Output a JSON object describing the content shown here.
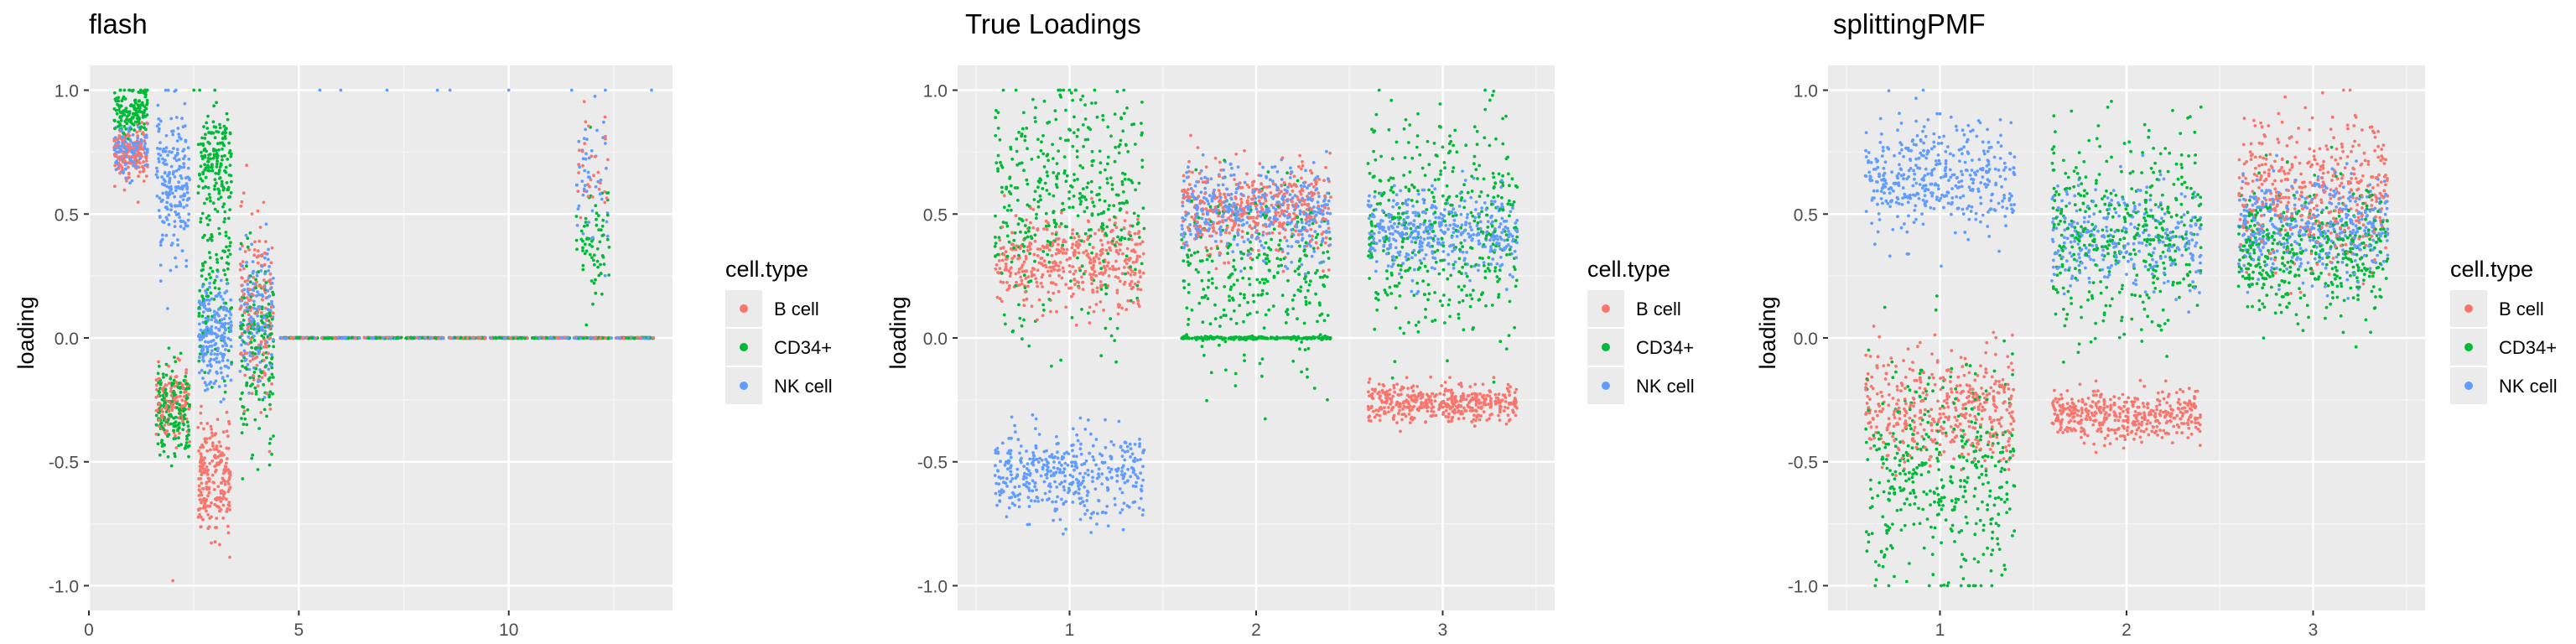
{
  "legend": {
    "title": "cell.type",
    "entries": [
      {
        "label": "B cell",
        "color": "#F8766D"
      },
      {
        "label": "CD34+",
        "color": "#00BA38"
      },
      {
        "label": "NK cell",
        "color": "#619CFF"
      }
    ]
  },
  "chart_data": [
    {
      "type": "scatter",
      "title": "flash",
      "xlabel": "",
      "ylabel": "loading",
      "xlim": [
        0,
        13.9
      ],
      "ylim": [
        -1.1,
        1.1
      ],
      "xticks": [
        0,
        5,
        10
      ],
      "yticks": [
        -1.0,
        -0.5,
        0.0,
        0.5,
        1.0
      ],
      "grid": true,
      "legend_position": "right",
      "jitter_clusters": [
        {
          "factor": 1,
          "group": "B cell",
          "center": 0.75,
          "spread": 0.05,
          "n": 160
        },
        {
          "factor": 1,
          "group": "CD34+",
          "center": 0.92,
          "spread": 0.05,
          "n": 160
        },
        {
          "factor": 1,
          "group": "NK cell",
          "center": 0.76,
          "spread": 0.05,
          "n": 120
        },
        {
          "factor": 2,
          "group": "CD34+",
          "center": -0.29,
          "spread": 0.09,
          "n": 180
        },
        {
          "factor": 2,
          "group": "B cell",
          "center": -0.25,
          "spread": 0.08,
          "n": 120
        },
        {
          "factor": 2,
          "group": "NK cell",
          "center": 0.62,
          "spread": 0.13,
          "n": 200
        },
        {
          "factor": 3,
          "group": "B cell",
          "center": -0.57,
          "spread": 0.12,
          "n": 220
        },
        {
          "factor": 3,
          "group": "CD34+",
          "center": 0.72,
          "spread": 0.1,
          "n": 150
        },
        {
          "factor": 3,
          "group": "CD34+",
          "center": 0.3,
          "spread": 0.22,
          "n": 120
        },
        {
          "factor": 3,
          "group": "NK cell",
          "center": 0.02,
          "spread": 0.1,
          "n": 220
        },
        {
          "factor": 4,
          "group": "B cell",
          "center": 0.12,
          "spread": 0.18,
          "n": 160
        },
        {
          "factor": 4,
          "group": "CD34+",
          "center": -0.05,
          "spread": 0.18,
          "n": 160
        },
        {
          "factor": 4,
          "group": "NK cell",
          "center": 0.1,
          "spread": 0.15,
          "n": 140
        },
        {
          "factor": 12,
          "group": "CD34+",
          "center": 0.4,
          "spread": 0.12,
          "n": 70
        },
        {
          "factor": 12,
          "group": "NK cell",
          "center": 0.62,
          "spread": 0.15,
          "n": 45
        },
        {
          "factor": 12,
          "group": "B cell",
          "center": 0.68,
          "spread": 0.1,
          "n": 30
        }
      ],
      "zero_band": {
        "from_factor": 5,
        "to_factor": 13,
        "value": 0.0,
        "groups": [
          "B cell",
          "CD34+",
          "NK cell"
        ]
      },
      "top_points": [
        {
          "x": 5.5,
          "y": 1.0,
          "group": "NK cell"
        },
        {
          "x": 6.0,
          "y": 1.0,
          "group": "NK cell"
        },
        {
          "x": 7.1,
          "y": 1.0,
          "group": "NK cell"
        },
        {
          "x": 8.3,
          "y": 1.0,
          "group": "NK cell"
        },
        {
          "x": 8.6,
          "y": 1.0,
          "group": "NK cell"
        },
        {
          "x": 10.0,
          "y": 1.0,
          "group": "NK cell"
        },
        {
          "x": 11.5,
          "y": 1.0,
          "group": "NK cell"
        },
        {
          "x": 12.3,
          "y": 1.0,
          "group": "NK cell"
        },
        {
          "x": 13.4,
          "y": 1.0,
          "group": "NK cell"
        },
        {
          "x": 2.5,
          "y": 1.0,
          "group": "CD34+"
        },
        {
          "x": 3.0,
          "y": 1.0,
          "group": "CD34+"
        },
        {
          "x": 2.0,
          "y": -0.98,
          "group": "B cell"
        }
      ]
    },
    {
      "type": "scatter",
      "title": "True Loadings",
      "xlabel": "",
      "ylabel": "loading",
      "xlim": [
        0.4,
        3.6
      ],
      "ylim": [
        -1.1,
        1.1
      ],
      "xticks": [
        1,
        2,
        3
      ],
      "yticks": [
        -1.0,
        -0.5,
        0.0,
        0.5,
        1.0
      ],
      "grid": true,
      "legend_position": "right",
      "jitter_clusters": [
        {
          "factor": 1,
          "group": "CD34+",
          "center": 0.58,
          "spread": 0.22,
          "n": 420
        },
        {
          "factor": 1,
          "group": "B cell",
          "center": 0.3,
          "spread": 0.09,
          "n": 420
        },
        {
          "factor": 1,
          "group": "NK cell",
          "center": -0.55,
          "spread": 0.09,
          "n": 420
        },
        {
          "factor": 2,
          "group": "CD34+",
          "center": 0.25,
          "spread": 0.2,
          "n": 300
        },
        {
          "factor": 2,
          "group": "CD34+",
          "center": 0.0,
          "spread": 0.003,
          "n": 200
        },
        {
          "factor": 2,
          "group": "B cell",
          "center": 0.52,
          "spread": 0.09,
          "n": 420
        },
        {
          "factor": 2,
          "group": "NK cell",
          "center": 0.52,
          "spread": 0.09,
          "n": 420
        },
        {
          "factor": 3,
          "group": "CD34+",
          "center": 0.45,
          "spread": 0.22,
          "n": 420
        },
        {
          "factor": 3,
          "group": "NK cell",
          "center": 0.43,
          "spread": 0.08,
          "n": 420
        },
        {
          "factor": 3,
          "group": "B cell",
          "center": -0.26,
          "spread": 0.04,
          "n": 420
        }
      ]
    },
    {
      "type": "scatter",
      "title": "splittingPMF",
      "xlabel": "",
      "ylabel": "loading",
      "xlim": [
        0.4,
        3.6
      ],
      "ylim": [
        -1.1,
        1.1
      ],
      "xticks": [
        1,
        2,
        3
      ],
      "yticks": [
        -1.0,
        -0.5,
        0.0,
        0.5,
        1.0
      ],
      "grid": true,
      "legend_position": "right",
      "jitter_clusters": [
        {
          "factor": 1,
          "group": "NK cell",
          "center": 0.65,
          "spread": 0.11,
          "n": 420
        },
        {
          "factor": 1,
          "group": "B cell",
          "center": -0.28,
          "spread": 0.12,
          "n": 420
        },
        {
          "factor": 1,
          "group": "CD34+",
          "center": -0.55,
          "spread": 0.22,
          "n": 420
        },
        {
          "factor": 2,
          "group": "CD34+",
          "center": 0.42,
          "spread": 0.2,
          "n": 420
        },
        {
          "factor": 2,
          "group": "NK cell",
          "center": 0.4,
          "spread": 0.12,
          "n": 300
        },
        {
          "factor": 2,
          "group": "B cell",
          "center": -0.31,
          "spread": 0.05,
          "n": 420
        },
        {
          "factor": 3,
          "group": "B cell",
          "center": 0.6,
          "spread": 0.15,
          "n": 420
        },
        {
          "factor": 3,
          "group": "NK cell",
          "center": 0.45,
          "spread": 0.1,
          "n": 420
        },
        {
          "factor": 3,
          "group": "CD34+",
          "center": 0.33,
          "spread": 0.13,
          "n": 420
        }
      ]
    }
  ]
}
